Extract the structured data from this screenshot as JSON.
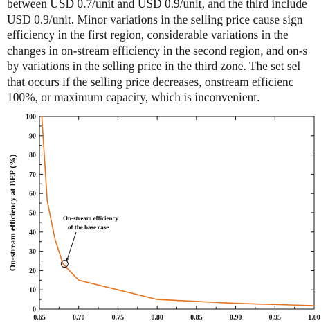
{
  "paragraph": {
    "lines": [
      "between USD 0.7/unit and USD 0.9/unit, and the third include",
      "USD 0.9/unit. Minor variations in the selling price cause sign",
      "efficiency in the first region, considerable variations in the",
      "changes in on-stream efficiency in the second region, and on-s",
      "by variations in the selling price in the third zone. The set sel",
      "that occurs if the selling price decreases, onstream efficienc",
      "100%, or maximum capacity, which is inconvenient."
    ]
  },
  "chart_data": {
    "type": "line",
    "title": "",
    "xlabel": "",
    "ylabel": "On-stream efficiency at BEP (%)",
    "xlim": [
      0.65,
      1.0
    ],
    "ylim": [
      0,
      100
    ],
    "x_ticks": [
      0.65,
      0.7,
      0.75,
      0.8,
      0.85,
      0.9,
      0.95,
      1.0
    ],
    "x_tick_labels": [
      "0.65",
      "0.70",
      "0.75",
      "0.80",
      "0.85",
      "0.90",
      "0.95",
      "1.00"
    ],
    "y_ticks": [
      0,
      10,
      20,
      30,
      40,
      50,
      60,
      70,
      80,
      90,
      100
    ],
    "y_tick_labels": [
      "0",
      "10",
      "20",
      "30",
      "40",
      "50",
      "60",
      "70",
      "80",
      "90",
      "100"
    ],
    "grid": false,
    "series": [
      {
        "name": "",
        "color": "#e8731e",
        "x": [
          0.653,
          0.66,
          0.67,
          0.68,
          0.7,
          0.75,
          0.8,
          0.9,
          1.0
        ],
        "y": [
          100,
          56,
          36,
          23.5,
          15,
          10,
          5,
          3,
          1.8
        ]
      }
    ],
    "annotation": {
      "line1": "On-stream efficiency",
      "line2": "of the base case",
      "point_x": 0.682,
      "point_y": 23.5
    }
  }
}
